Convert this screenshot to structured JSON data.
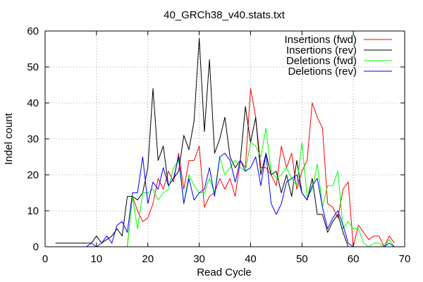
{
  "chart_data": {
    "type": "line",
    "title": "40_GRCh38_v40.stats.txt",
    "xlabel": "Read Cycle",
    "ylabel": "Indel count",
    "xlim": [
      0,
      70
    ],
    "ylim": [
      0,
      60
    ],
    "xticks": [
      0,
      10,
      20,
      30,
      40,
      50,
      60,
      70
    ],
    "yticks": [
      0,
      10,
      20,
      30,
      40,
      50,
      60
    ],
    "grid": true,
    "legend": "top-right",
    "series": [
      {
        "name": "Insertions (fwd)",
        "color": "#ff0000",
        "x": [
          16,
          17,
          18,
          19,
          20,
          21,
          22,
          23,
          24,
          25,
          26,
          27,
          28,
          29,
          30,
          31,
          32,
          33,
          34,
          35,
          36,
          37,
          38,
          39,
          40,
          41,
          42,
          43,
          44,
          45,
          46,
          47,
          48,
          49,
          50,
          51,
          52,
          53,
          54,
          55,
          56,
          57,
          58,
          59,
          60,
          61,
          62,
          63,
          64,
          65,
          66,
          67,
          68
        ],
        "y": [
          0,
          14,
          10,
          7,
          8,
          12,
          19,
          16,
          21,
          18,
          26,
          16,
          24,
          24,
          28,
          11,
          14,
          15,
          19,
          16,
          19,
          14,
          24,
          22,
          44,
          36,
          22,
          22,
          20,
          17,
          28,
          22,
          26,
          16,
          21,
          24,
          40,
          36,
          33,
          12,
          11,
          8,
          16,
          18,
          0,
          6,
          4,
          2,
          3,
          3,
          0,
          3,
          1
        ]
      },
      {
        "name": "Insertions (rev)",
        "color": "#000000",
        "x": [
          2,
          3,
          4,
          5,
          6,
          7,
          8,
          9,
          10,
          11,
          12,
          13,
          14,
          15,
          16,
          17,
          18,
          19,
          20,
          21,
          22,
          23,
          24,
          25,
          26,
          27,
          28,
          29,
          30,
          31,
          32,
          33,
          34,
          35,
          36,
          37,
          38,
          39,
          40,
          41,
          42,
          43,
          44,
          45,
          46,
          47,
          48,
          49,
          50,
          51,
          52,
          53,
          54,
          55,
          56,
          57,
          58,
          59,
          60
        ],
        "y": [
          1,
          1,
          1,
          1,
          1,
          1,
          1,
          1,
          3,
          1,
          2,
          3,
          5,
          3,
          14,
          14,
          13,
          15,
          22,
          44,
          24,
          28,
          17,
          19,
          21,
          31,
          27,
          35,
          58,
          32,
          52,
          26,
          30,
          36,
          25,
          22,
          24,
          39,
          29,
          36,
          20,
          26,
          20,
          21,
          15,
          20,
          14,
          24,
          15,
          13,
          19,
          9,
          9,
          4,
          7,
          9,
          4,
          0,
          0
        ]
      },
      {
        "name": "Deletions (fwd)",
        "color": "#00ff00",
        "x": [
          16,
          17,
          18,
          19,
          20,
          21,
          22,
          23,
          24,
          25,
          26,
          27,
          28,
          29,
          30,
          31,
          32,
          33,
          34,
          35,
          36,
          37,
          38,
          39,
          40,
          41,
          42,
          43,
          44,
          45,
          46,
          47,
          48,
          49,
          50,
          51,
          52,
          53,
          54,
          55,
          56,
          57,
          58,
          59,
          60,
          61,
          62,
          63,
          64,
          65,
          66,
          67,
          68
        ],
        "y": [
          0,
          14,
          5,
          15,
          15,
          16,
          13,
          15,
          16,
          22,
          24,
          12,
          20,
          17,
          15,
          15,
          19,
          15,
          25,
          20,
          22,
          24,
          22,
          21,
          29,
          28,
          25,
          33,
          21,
          19,
          20,
          22,
          19,
          17,
          29,
          14,
          16,
          23,
          11,
          17,
          17,
          21,
          5,
          7,
          5,
          5,
          1,
          0,
          1,
          1,
          0,
          2,
          0
        ]
      },
      {
        "name": "Deletions (rev)",
        "color": "#0000ff",
        "x": [
          2,
          3,
          4,
          5,
          6,
          7,
          8,
          9,
          10,
          11,
          12,
          13,
          14,
          15,
          16,
          17,
          18,
          19,
          20,
          21,
          22,
          23,
          24,
          25,
          26,
          27,
          28,
          29,
          30,
          31,
          32,
          33,
          34,
          35,
          36,
          37,
          38,
          39,
          40,
          41,
          42,
          43,
          44,
          45,
          46,
          47,
          48,
          49,
          50,
          51,
          52,
          53,
          54,
          55,
          56,
          57,
          58,
          59,
          60,
          61,
          62,
          63,
          64,
          65,
          66,
          67,
          68
        ],
        "y": [
          0,
          0,
          0,
          0,
          0,
          0,
          0,
          1,
          0,
          1,
          3,
          1,
          6,
          7,
          4,
          15,
          15,
          25,
          12,
          18,
          16,
          22,
          17,
          19,
          25,
          12,
          19,
          13,
          15,
          16,
          22,
          14,
          25,
          26,
          24,
          18,
          24,
          21,
          22,
          25,
          17,
          26,
          12,
          9,
          12,
          18,
          19,
          20,
          15,
          13,
          17,
          19,
          11,
          5,
          8,
          10,
          6,
          1,
          0,
          0,
          0,
          0,
          0,
          0,
          0,
          1,
          0
        ]
      }
    ]
  }
}
